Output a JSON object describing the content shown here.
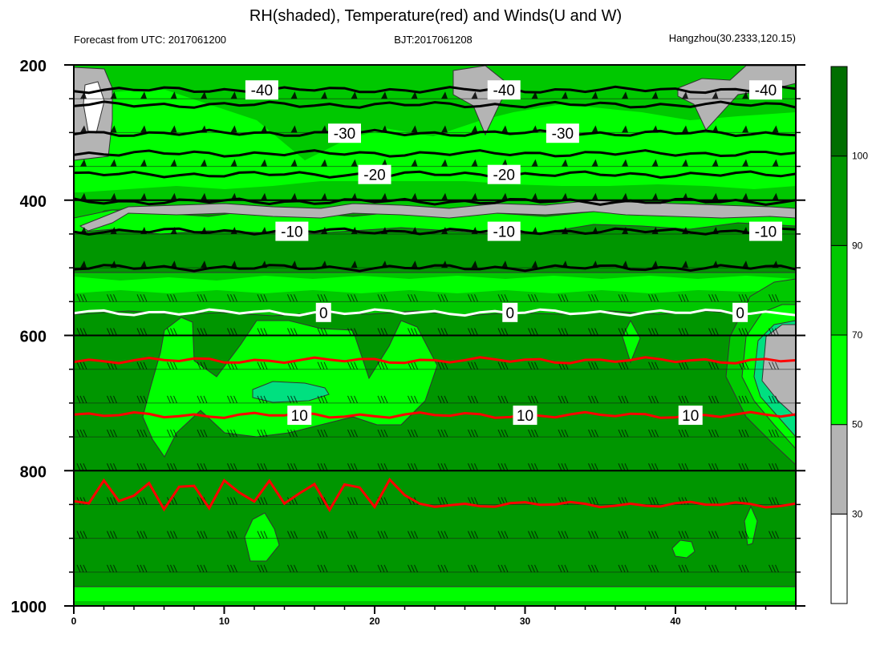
{
  "header": {
    "title": "RH(shaded), Temperature(red) and Winds(U and W)",
    "left": "Forecast from UTC: 2017061200",
    "center": "BJT:2017061208",
    "right": "Hangzhou(30.2333,120.15)"
  },
  "chart_data": {
    "type": "heatmap",
    "x": {
      "min": 0,
      "max": 48,
      "ticks": [
        0,
        10,
        20,
        30,
        40
      ]
    },
    "y": {
      "min": 200,
      "max": 1000,
      "reversed": true,
      "ticks": [
        200,
        400,
        600,
        800,
        1000
      ]
    },
    "colorbar": {
      "levels": [
        30,
        50,
        70,
        90,
        100
      ],
      "colors": [
        "#ffffff",
        "#b4b4b4",
        "#00ff00",
        "#00c800",
        "#009600",
        "#006e00"
      ]
    },
    "temperature_contours": [
      {
        "level": -40,
        "y": 237,
        "color": "#000000",
        "labels": [
          {
            "text": "-40",
            "x": 12.5
          },
          {
            "text": "-40",
            "x": 28.6
          },
          {
            "text": "-40",
            "x": 46.0
          }
        ]
      },
      {
        "level": -35,
        "y": 259,
        "color": "#000000",
        "labels": []
      },
      {
        "level": -30,
        "y": 301,
        "color": "#000000",
        "labels": [
          {
            "text": "-30",
            "x": 18.0
          },
          {
            "text": "-30",
            "x": 32.5
          }
        ]
      },
      {
        "level": -25,
        "y": 331,
        "color": "#000000",
        "labels": []
      },
      {
        "level": -20,
        "y": 362,
        "color": "#000000",
        "labels": [
          {
            "text": "-20",
            "x": 20.0
          },
          {
            "text": "-20",
            "x": 28.6
          }
        ]
      },
      {
        "level": -15,
        "y": 402,
        "color": "#000000",
        "labels": []
      },
      {
        "level": -10,
        "y": 446,
        "color": "#000000",
        "labels": [
          {
            "text": "-10",
            "x": 14.5
          },
          {
            "text": "-10",
            "x": 28.6
          },
          {
            "text": "-10",
            "x": 46.0
          }
        ]
      },
      {
        "level": -5,
        "y": 500,
        "color": "#000000",
        "labels": []
      },
      {
        "level": 0,
        "y": 566,
        "color": "#ffffff",
        "labels": [
          {
            "text": "0",
            "x": 16.6
          },
          {
            "text": "0",
            "x": 29.0
          },
          {
            "text": "0",
            "x": 44.3
          }
        ]
      },
      {
        "level": 5,
        "y": 637,
        "color": "#ff0000",
        "labels": []
      },
      {
        "level": 10,
        "y": 718,
        "color": "#ff0000",
        "labels": [
          {
            "text": "10",
            "x": 15.0
          },
          {
            "text": "10",
            "x": 30.0
          },
          {
            "text": "10",
            "x": 41.0
          }
        ]
      },
      {
        "level": 15,
        "y": 850,
        "color": "#ff0000",
        "labels": []
      }
    ],
    "wind_levels": [
      250,
      300,
      350,
      400,
      450,
      500,
      550,
      600,
      650,
      700,
      750,
      800,
      850,
      900,
      950
    ],
    "wind_times": [
      0,
      2,
      4,
      6,
      8,
      10,
      12,
      14,
      16,
      18,
      20,
      22,
      24,
      26,
      28,
      30,
      32,
      34,
      36,
      38,
      40,
      42,
      44,
      46
    ]
  }
}
